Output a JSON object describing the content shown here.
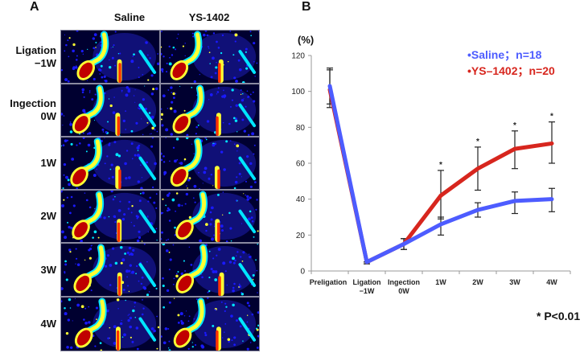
{
  "panel_a": {
    "letter": "A",
    "columns": [
      "Saline",
      "YS-1402"
    ],
    "rows": [
      "Ligation\n−1W",
      "Ingection\n0W",
      "1W",
      "2W",
      "3W",
      "4W"
    ],
    "colormap": [
      "#000030",
      "#1a1aff",
      "#00e5ff",
      "#ffff33",
      "#ff3300",
      "#c00000"
    ]
  },
  "panel_b": {
    "letter": "B",
    "unit_label": "(%)",
    "note": "* P<0.01",
    "legend": [
      {
        "label": "•Saline；n=18",
        "color": "#4d5cff"
      },
      {
        "label": "•YS–1402；n=20",
        "color": "#d7261e"
      }
    ]
  },
  "chart_data": {
    "type": "line",
    "title": "",
    "xlabel": "",
    "ylabel": "(%)",
    "ylim": [
      0,
      120
    ],
    "yticks": [
      0,
      20,
      40,
      60,
      80,
      100,
      120
    ],
    "grid": false,
    "legend_position": "upper right",
    "categories": [
      "Preligation",
      "Ligation\n−1W",
      "Ingection\n0W",
      "1W",
      "2W",
      "3W",
      "4W"
    ],
    "series": [
      {
        "name": "Saline; n=18",
        "color": "#4d5cff",
        "values": [
          103,
          5,
          15,
          26,
          34,
          39,
          40
        ],
        "error_high": [
          112,
          5,
          18,
          30,
          38,
          44,
          46
        ],
        "error_low": [
          93,
          4,
          12,
          20,
          30,
          32,
          33
        ]
      },
      {
        "name": "YS-1402; n=20",
        "color": "#d7261e",
        "values": [
          101,
          5,
          15,
          42,
          57,
          68,
          71
        ],
        "error_high": [
          113,
          5,
          18,
          56,
          69,
          78,
          83
        ],
        "error_low": [
          91,
          4,
          12,
          29,
          45,
          57,
          60
        ]
      }
    ],
    "significance_markers": [
      "1W",
      "2W",
      "3W",
      "4W"
    ],
    "annotations": [
      "* P<0.01"
    ]
  }
}
